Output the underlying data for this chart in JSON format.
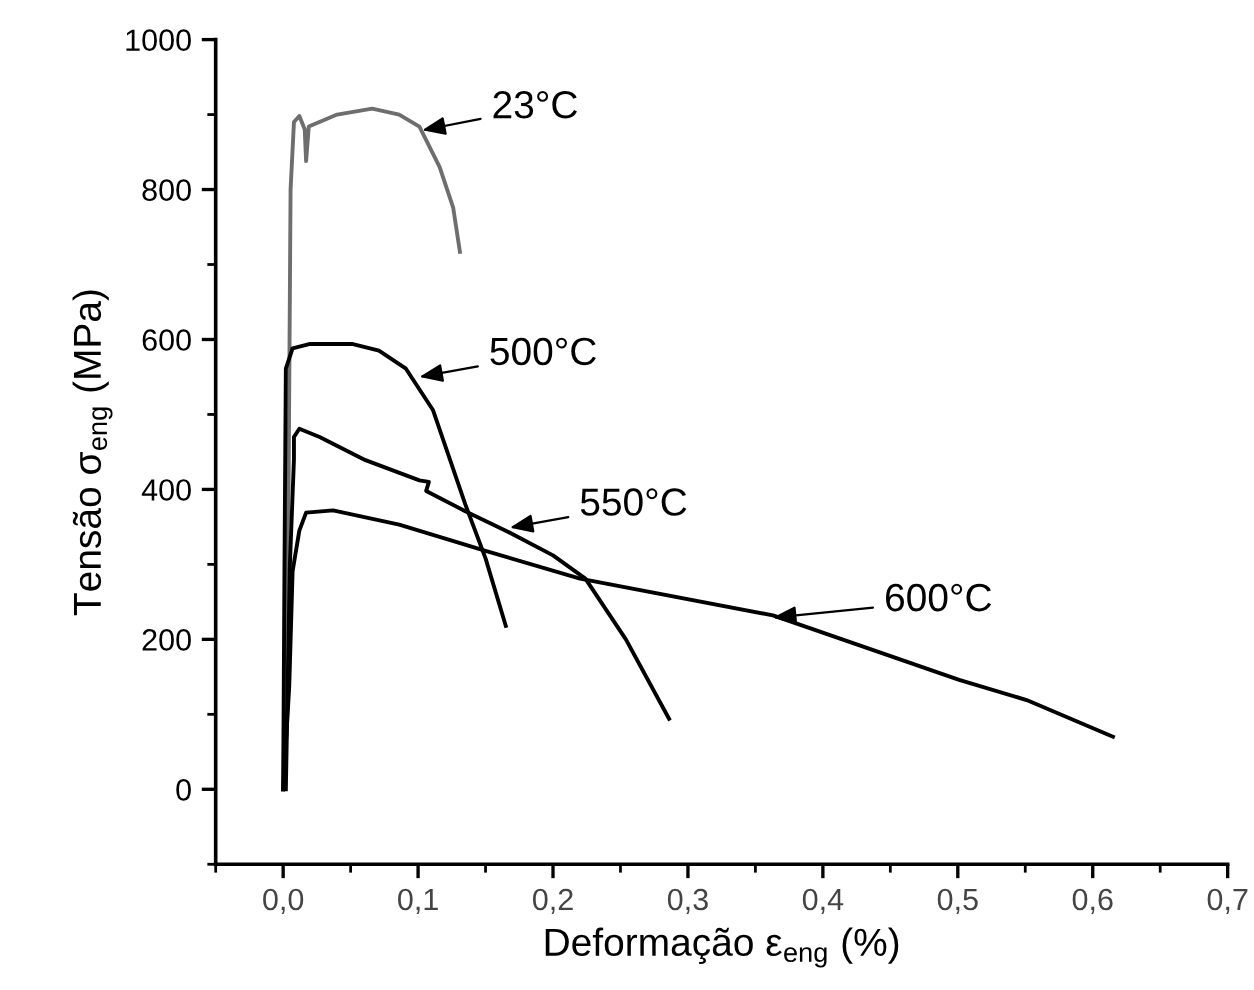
{
  "chart_data": {
    "type": "line",
    "xlabel": "Deformação ε$_{eng}$ (%)",
    "ylabel": "Tensão σ$_{eng}$ (MPa)",
    "xlim": [
      -0.05,
      0.7
    ],
    "ylim": [
      -100,
      1000
    ],
    "xticks": [
      {
        "value": 0,
        "label": "0,0"
      },
      {
        "value": 0.1,
        "label": "0,1"
      },
      {
        "value": 0.2,
        "label": "0,2"
      },
      {
        "value": 0.3,
        "label": "0,3"
      },
      {
        "value": 0.4,
        "label": "0,4"
      },
      {
        "value": 0.5,
        "label": "0,5"
      },
      {
        "value": 0.6,
        "label": "0,6"
      },
      {
        "value": 0.7,
        "label": "0,7"
      }
    ],
    "yticks": [
      0,
      200,
      400,
      600,
      800,
      1000
    ],
    "grid": false,
    "legend": false,
    "marker": "none",
    "line_style": "solid",
    "series": [
      {
        "color": "#6e6e6e",
        "x": [
          0.0,
          0.004,
          0.0055,
          0.008,
          0.012,
          0.016,
          0.017,
          0.019,
          0.04,
          0.066,
          0.086,
          0.101,
          0.116,
          0.126,
          0.131
        ],
        "values": [
          0,
          400,
          800,
          890,
          898,
          880,
          838,
          884,
          900,
          908,
          900,
          884,
          830,
          776,
          717
        ]
      },
      {
        "color": "#000000",
        "x": [
          0.0,
          0.001,
          0.002,
          0.007,
          0.02,
          0.051,
          0.071,
          0.091,
          0.111,
          0.135,
          0.15,
          0.165
        ],
        "values": [
          0,
          300,
          561,
          588,
          594,
          594,
          585,
          561,
          506,
          380,
          308,
          218
        ]
      },
      {
        "color": "#000000",
        "x": [
          0.002,
          0.005,
          0.008,
          0.008,
          0.012,
          0.027,
          0.061,
          0.101,
          0.108,
          0.106,
          0.135,
          0.165,
          0.2,
          0.224,
          0.254,
          0.286
        ],
        "values": [
          0,
          300,
          440,
          470,
          481,
          470,
          439,
          412,
          410,
          398,
          371,
          345,
          312,
          281,
          200,
          94
        ]
      },
      {
        "color": "#000000",
        "x": [
          0.0,
          0.0045,
          0.007,
          0.012,
          0.017,
          0.037,
          0.086,
          0.15,
          0.22,
          0.363,
          0.501,
          0.551,
          0.615
        ],
        "values": [
          0,
          137,
          291,
          345,
          369,
          372,
          353,
          318,
          281,
          232,
          146,
          119,
          70
        ]
      }
    ],
    "annotations": [
      {
        "text": "23°C",
        "x": 0.103,
        "y": 879
      },
      {
        "text": "500°C",
        "x": 0.101,
        "y": 550
      },
      {
        "text": "550°C",
        "x": 0.168,
        "y": 349
      },
      {
        "text": "600°C",
        "x": 0.363,
        "y": 229
      }
    ]
  }
}
